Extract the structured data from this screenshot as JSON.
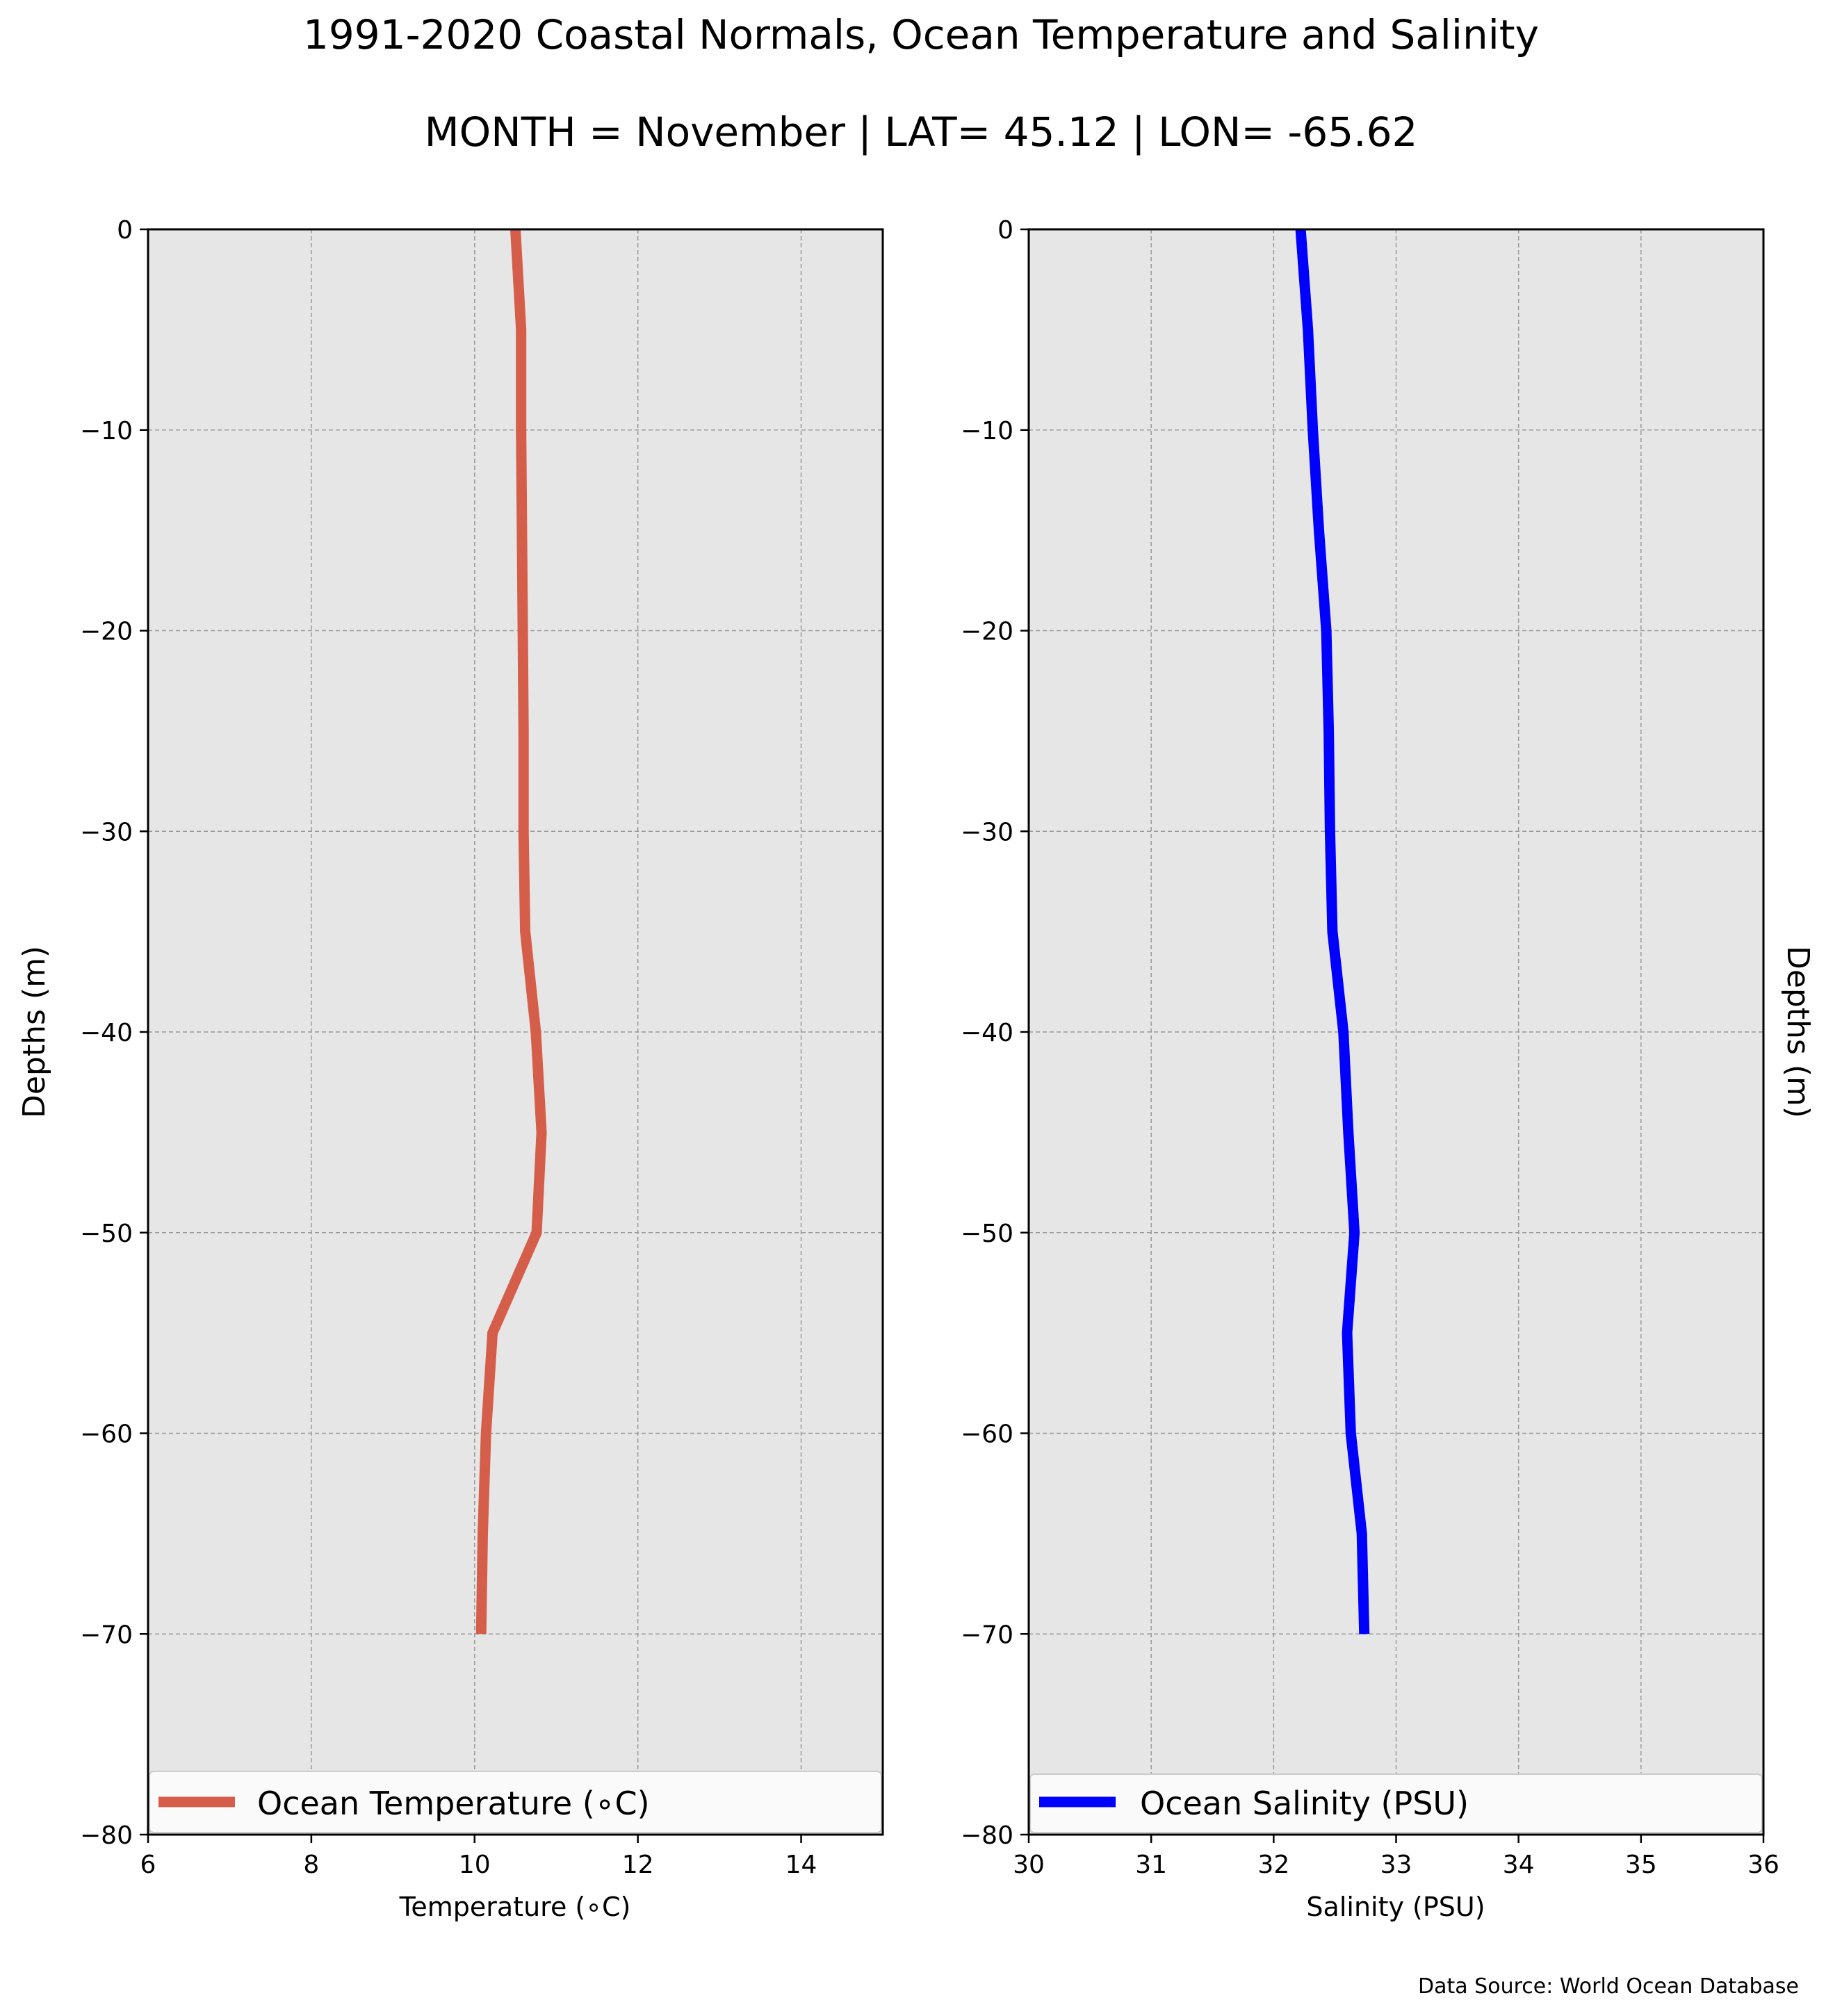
{
  "figure": {
    "title": "1991-2020 Coastal Normals, Ocean Temperature and Salinity",
    "subtitle": "MONTH = November | LAT= 45.12 | LON= -65.62",
    "source_note": "Data Source: World Ocean Database"
  },
  "chart_data": [
    {
      "type": "line",
      "xlabel": "Temperature ($^\\circ$C)",
      "xlabel_display": "Temperature (∘C)",
      "ylabel": "Depths (m)",
      "xlim": [
        6,
        15
      ],
      "ylim": [
        -80,
        0
      ],
      "xticks": [
        6,
        8,
        10,
        12,
        14
      ],
      "yticks": [
        0,
        -10,
        -20,
        -30,
        -40,
        -50,
        -60,
        -70,
        -80
      ],
      "grid": true,
      "legend": "lower center",
      "series": [
        {
          "name": "Ocean Temperature (∘C)",
          "color": "#d55e4b",
          "x": [
            10.5,
            10.57,
            10.57,
            10.58,
            10.59,
            10.6,
            10.6,
            10.62,
            10.75,
            10.82,
            10.76,
            10.22,
            10.14,
            10.1,
            10.08
          ],
          "y": [
            0,
            -5,
            -10,
            -15,
            -20,
            -25,
            -30,
            -35,
            -40,
            -45,
            -50,
            -55,
            -60,
            -65,
            -70
          ]
        }
      ]
    },
    {
      "type": "line",
      "xlabel": "Salinity (PSU)",
      "ylabel": "Depths (m)",
      "xlim": [
        30,
        36
      ],
      "ylim": [
        -80,
        0
      ],
      "xticks": [
        30,
        31,
        32,
        33,
        34,
        35,
        36
      ],
      "yticks": [
        0,
        -10,
        -20,
        -30,
        -40,
        -50,
        -60,
        -70,
        -80
      ],
      "grid": true,
      "legend": "lower center",
      "series": [
        {
          "name": "Ocean Salinity (PSU)",
          "color": "#0000ff",
          "x": [
            32.22,
            32.28,
            32.32,
            32.37,
            32.43,
            32.45,
            32.46,
            32.48,
            32.57,
            32.61,
            32.66,
            32.6,
            32.63,
            32.72,
            32.74
          ],
          "y": [
            0,
            -5,
            -10,
            -15,
            -20,
            -25,
            -30,
            -35,
            -40,
            -45,
            -50,
            -55,
            -60,
            -65,
            -70
          ]
        }
      ]
    }
  ]
}
